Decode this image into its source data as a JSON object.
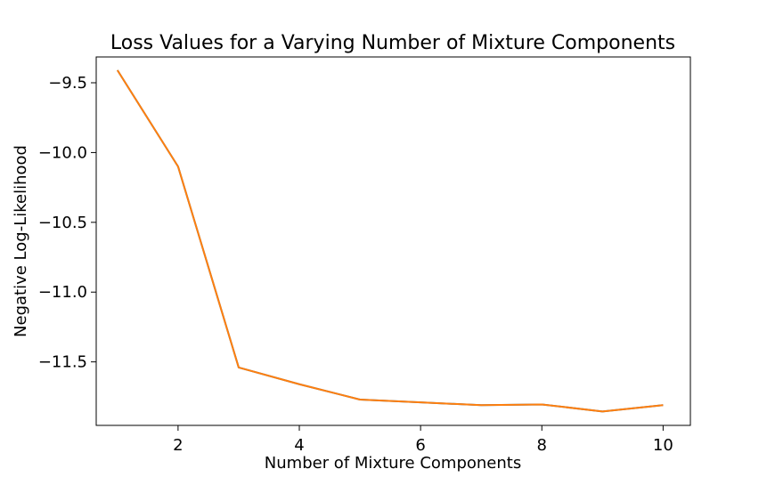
{
  "chart_data": {
    "type": "line",
    "title": "Loss Values for a Varying Number of Mixture Components",
    "xlabel": "Number of Mixture Components",
    "ylabel": "Negative Log-Likelihood",
    "xlim": [
      0.65,
      10.45
    ],
    "ylim": [
      -11.955,
      -9.315
    ],
    "xticks": [
      2,
      4,
      6,
      8,
      10
    ],
    "xtick_labels": [
      "2",
      "4",
      "6",
      "8",
      "10"
    ],
    "yticks": [
      -9.5,
      -10.0,
      -10.5,
      -11.0,
      -11.5
    ],
    "ytick_labels": [
      "−9.5",
      "−10.0",
      "−10.5",
      "−11.0",
      "−11.5"
    ],
    "grid": false,
    "series": [
      {
        "color": "#1f77b4",
        "x": [
          1,
          2,
          3,
          4,
          5,
          6,
          7,
          8,
          9,
          10
        ],
        "values": [
          -9.41,
          -10.1,
          -11.54,
          -11.66,
          -11.77,
          -11.79,
          -11.81,
          -11.805,
          -11.855,
          -11.81
        ]
      },
      {
        "color": "#ff7f0e",
        "x": [
          1,
          2,
          3,
          4,
          5,
          6,
          7,
          8,
          9,
          10
        ],
        "values": [
          -9.41,
          -10.1,
          -11.54,
          -11.66,
          -11.77,
          -11.79,
          -11.81,
          -11.805,
          -11.855,
          -11.81
        ]
      }
    ]
  }
}
